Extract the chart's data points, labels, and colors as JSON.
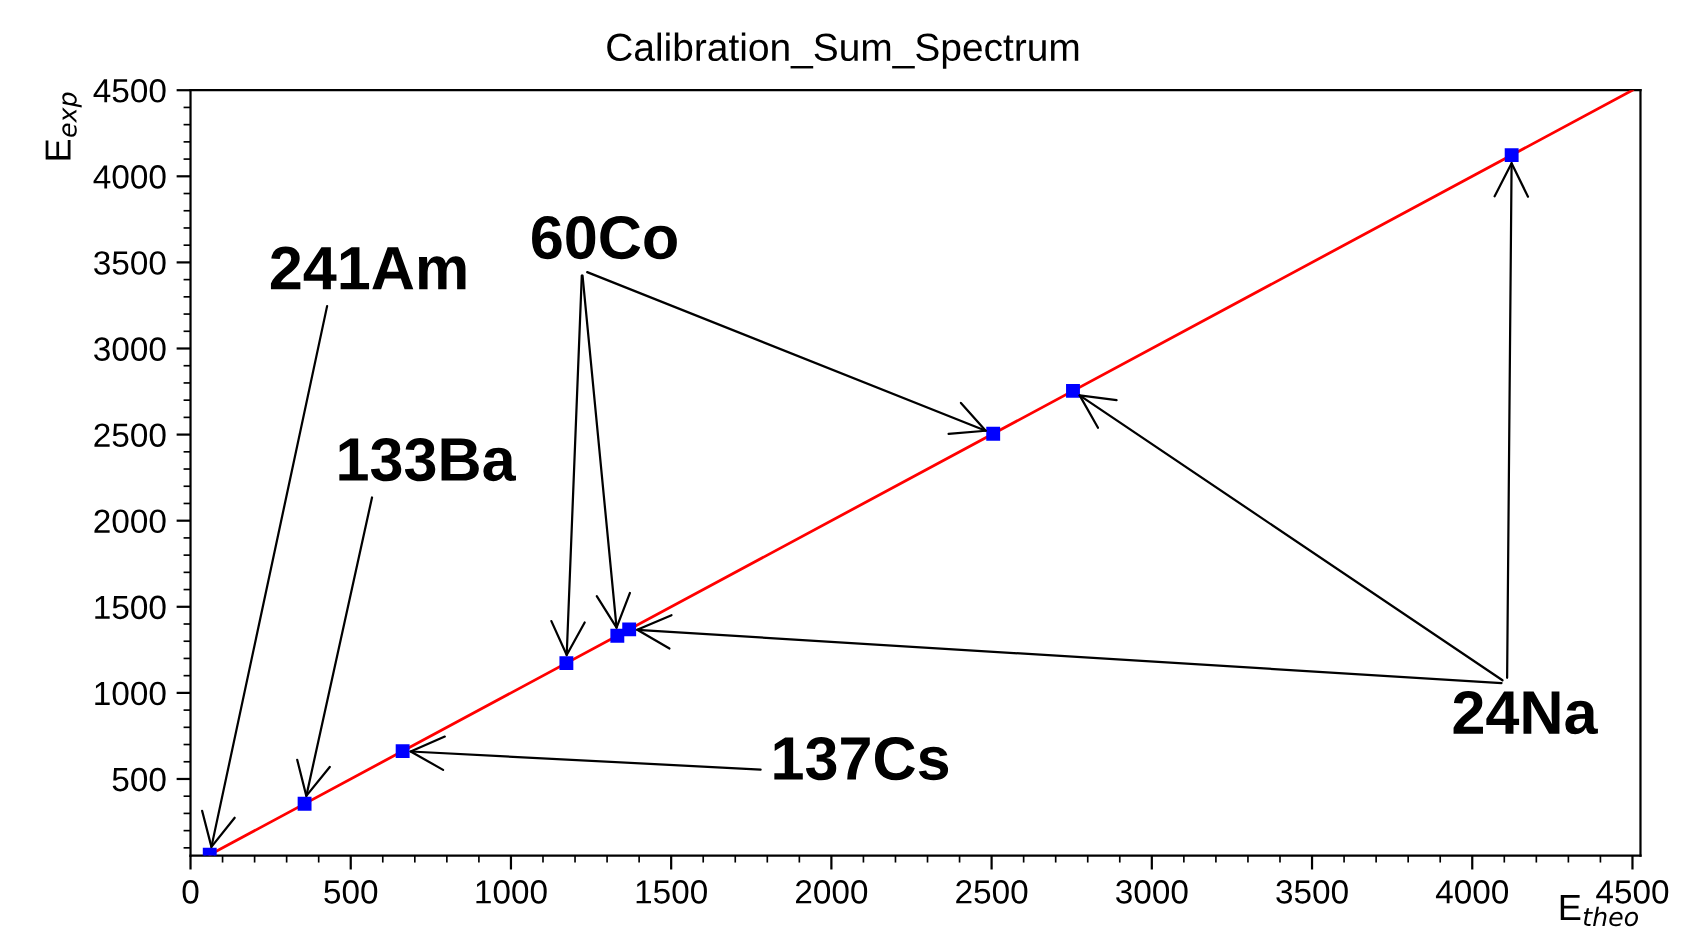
{
  "chart_data": {
    "type": "scatter",
    "title": "Calibration_Sum_Spectrum",
    "xlabel": "E$_{theo}$",
    "ylabel": "E$_{exp}$",
    "xlim": [
      0,
      4525
    ],
    "ylim": [
      55,
      4500
    ],
    "xticks": [
      0,
      500,
      1000,
      1500,
      2000,
      2500,
      3000,
      3500,
      4000,
      4500
    ],
    "yticks": [
      500,
      1000,
      1500,
      2000,
      2500,
      3000,
      3500,
      4000,
      4500
    ],
    "grid": false,
    "legend": false,
    "marker": "square",
    "series": [
      {
        "color": "#0000ff",
        "x": [
          60,
          356,
          662,
          1173,
          1332,
          1369,
          2505,
          2754,
          4123
        ],
        "values": [
          60,
          356,
          662,
          1173,
          1332,
          1369,
          2505,
          2754,
          4123
        ]
      },
      {
        "type": "line",
        "color": "#ff0000",
        "marker": "none",
        "line_style": "solid",
        "x": [
          60,
          4500
        ],
        "values": [
          60,
          4500
        ]
      }
    ],
    "annotations": [
      {
        "text": "241Am",
        "x": 60,
        "y": 60
      },
      {
        "text": "133Ba",
        "x": 356,
        "y": 356
      },
      {
        "text": "60Co",
        "x": 1173,
        "y": 1173
      },
      {
        "text": "137Cs",
        "x": 662,
        "y": 662
      },
      {
        "text": "24Na",
        "x": 1369,
        "y": 1369
      }
    ]
  }
}
